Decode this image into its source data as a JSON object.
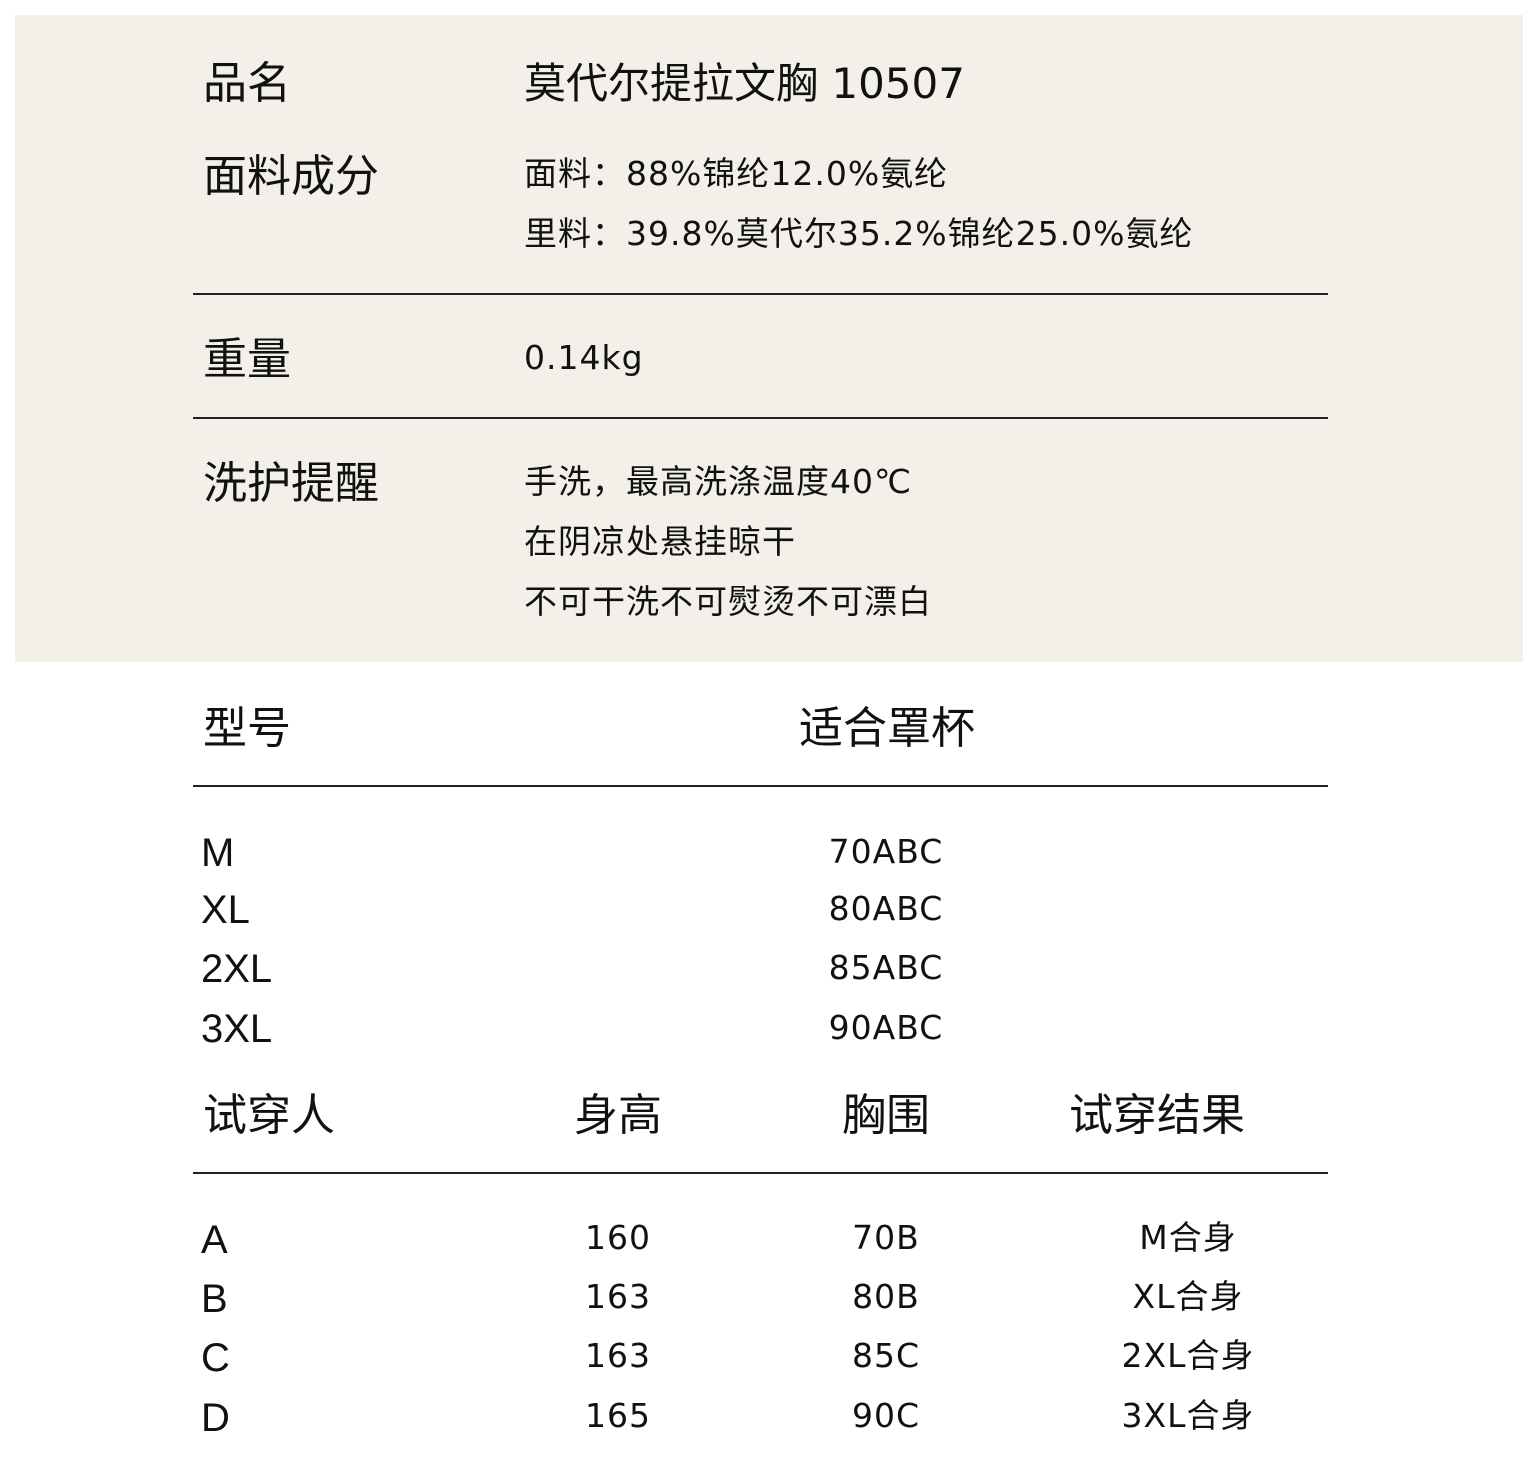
{
  "specs": {
    "name_label": "品名",
    "name_value": "莫代尔提拉文胸 10507",
    "fabric_label": "面料成分",
    "fabric_lines": [
      "面料：88%锦纶12.0%氨纶",
      "里料：39.8%莫代尔35.2%锦纶25.0%氨纶"
    ],
    "weight_label": "重量",
    "weight_value": "0.14kg",
    "care_label": "洗护提醒",
    "care_lines": [
      "手洗，最高洗涤温度40℃",
      "在阴凉处悬挂晾干",
      "不可干洗不可熨烫不可漂白"
    ]
  },
  "size_table": {
    "headers": [
      "型号",
      "适合罩杯"
    ],
    "rows": [
      [
        "M",
        "70ABC"
      ],
      [
        "XL",
        "80ABC"
      ],
      [
        "2XL",
        "85ABC"
      ],
      [
        "3XL",
        "90ABC"
      ]
    ]
  },
  "trial_table": {
    "headers": [
      "试穿人",
      "身高",
      "胸围",
      "试穿结果"
    ],
    "rows": [
      [
        "A",
        "160",
        "70B",
        "M合身"
      ],
      [
        "B",
        "163",
        "80B",
        "XL合身"
      ],
      [
        "C",
        "163",
        "85C",
        "2XL合身"
      ],
      [
        "D",
        "165",
        "90C",
        "3XL合身"
      ]
    ]
  },
  "colors": {
    "panel_bg": "#f3f0ea",
    "text": "#111111",
    "rule": "#222222"
  }
}
